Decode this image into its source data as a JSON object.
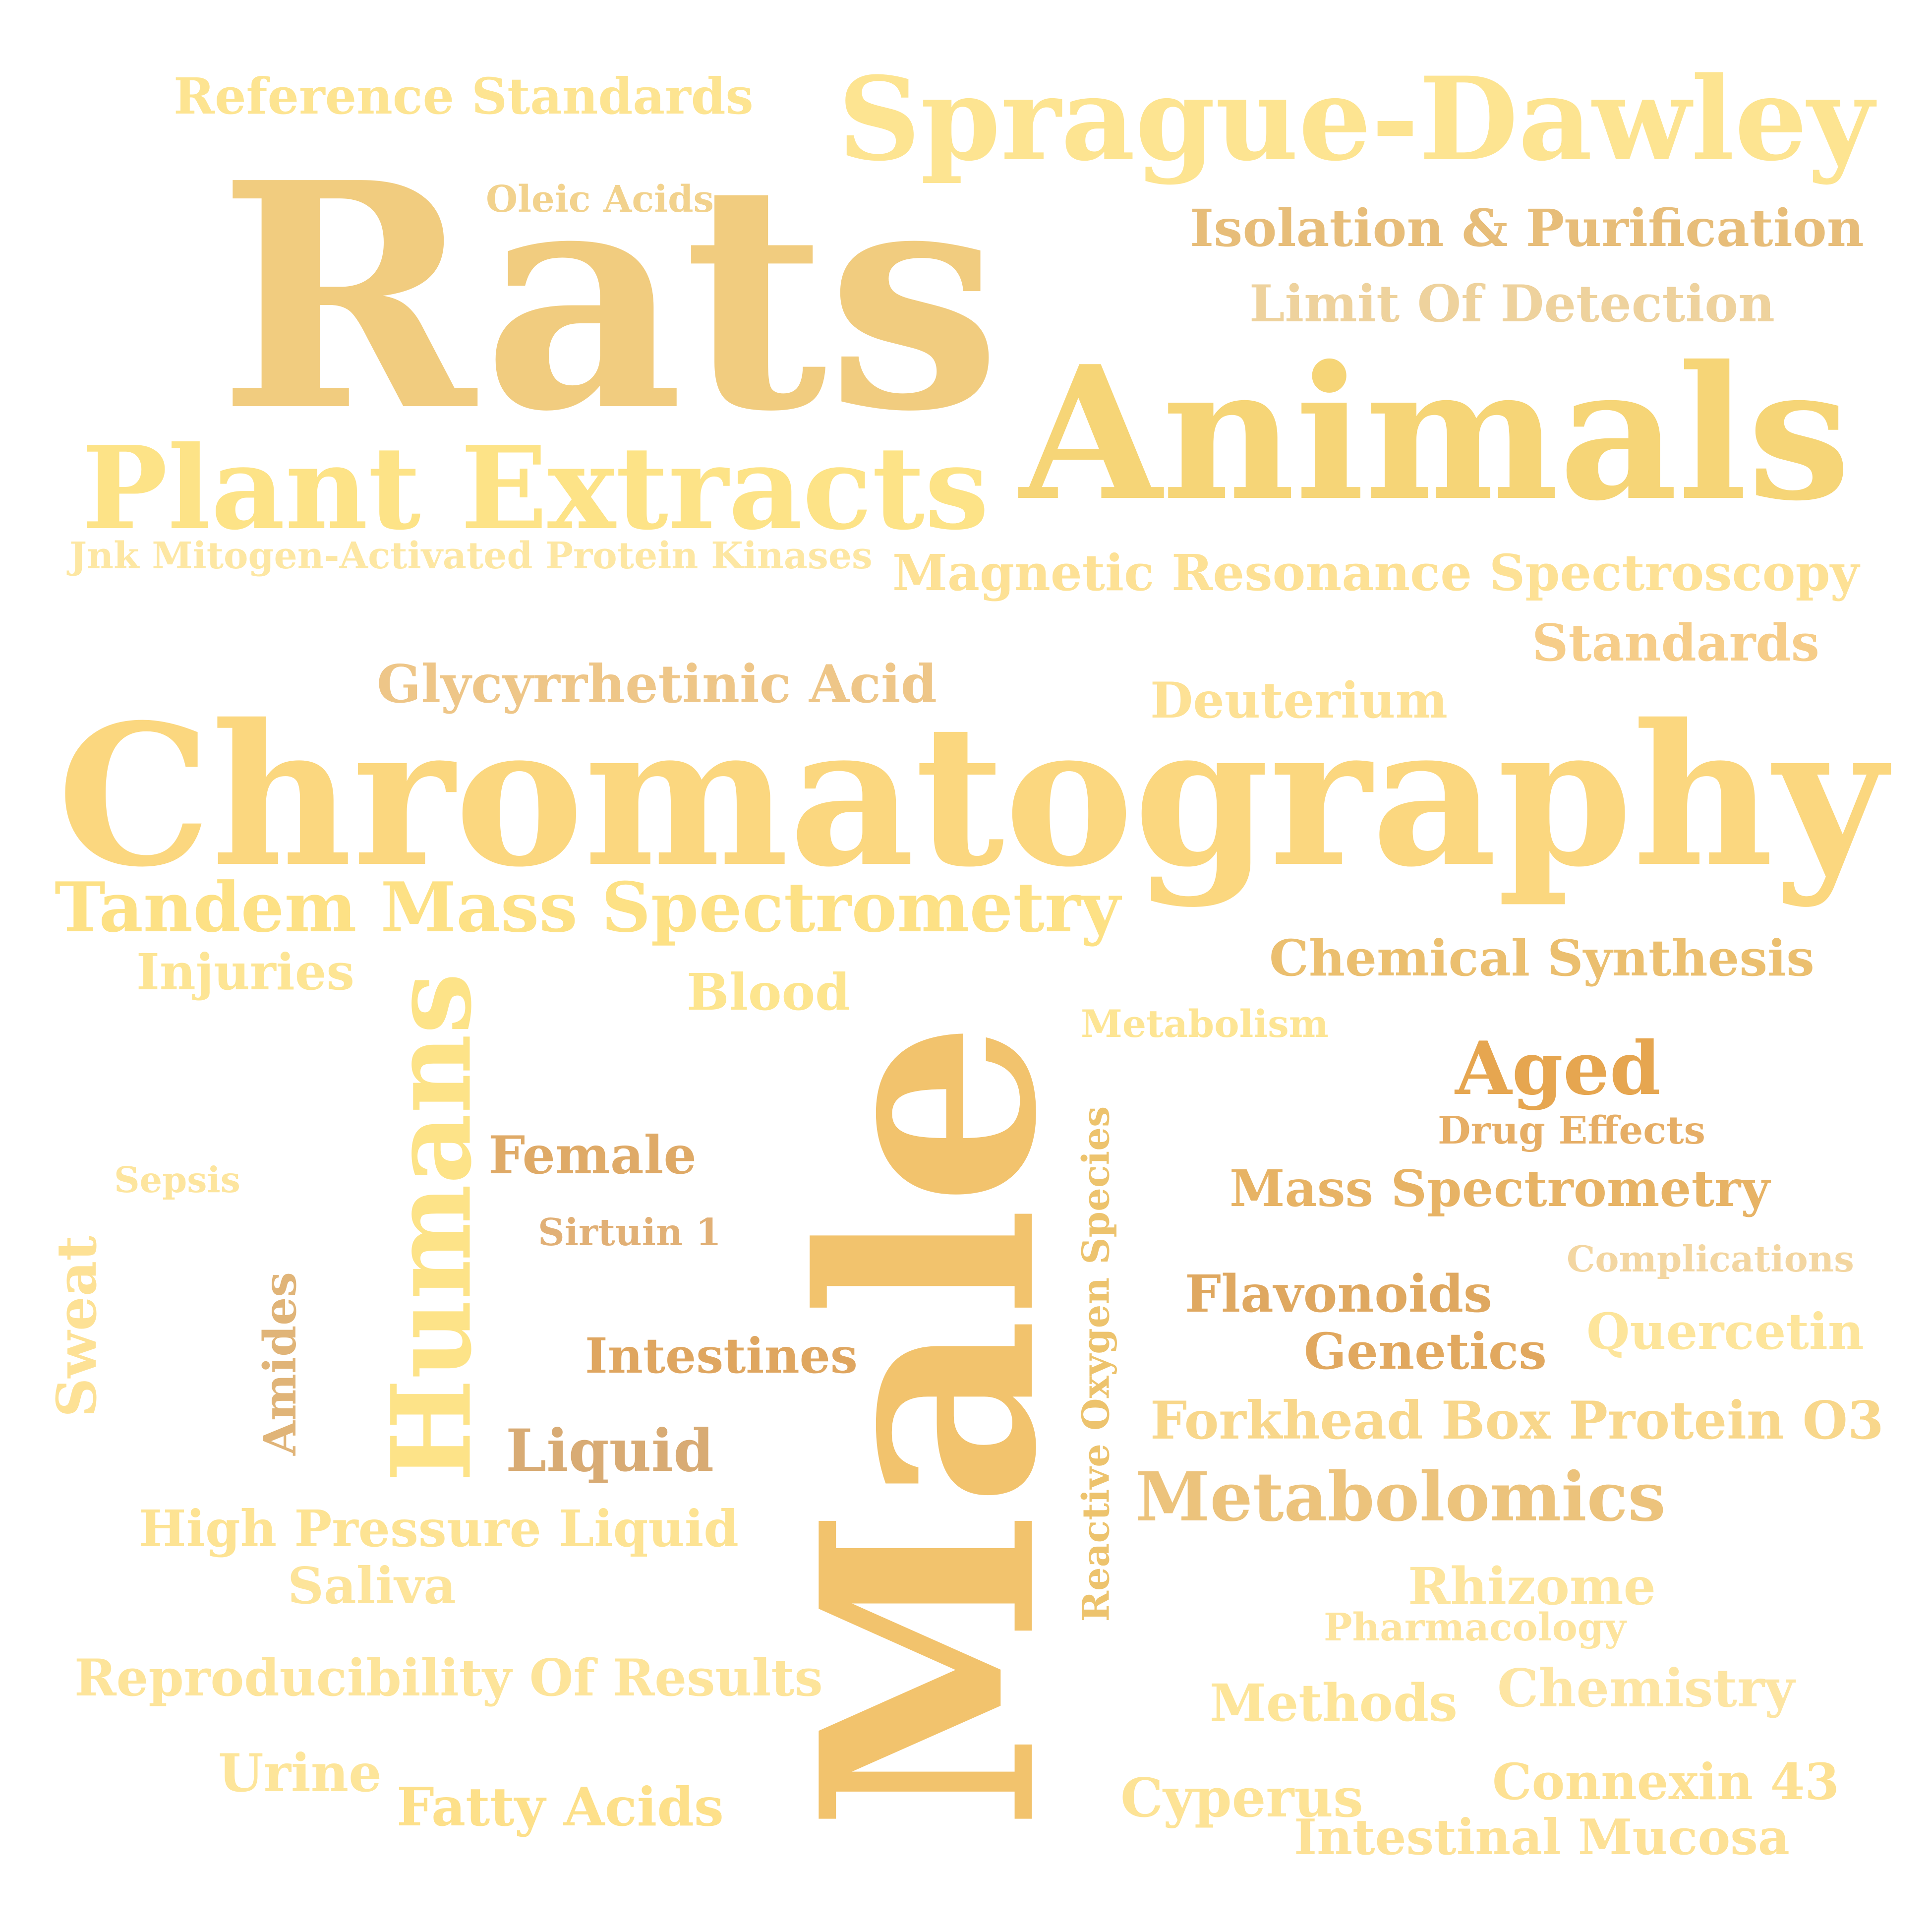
{
  "words": [
    {
      "text": "Reference Standards",
      "color": "#fde491"
    },
    {
      "text": "Sprague-Dawley",
      "color": "#fde491"
    },
    {
      "text": "Oleic Acids",
      "color": "#f2d28d"
    },
    {
      "text": "Rats",
      "color": "#f1cc7f"
    },
    {
      "text": "Isolation & Purification",
      "color": "#e7bd79"
    },
    {
      "text": "Limit Of Detection",
      "color": "#eed29d"
    },
    {
      "text": "Animals",
      "color": "#f6d577"
    },
    {
      "text": "Plant Extracts",
      "color": "#fde387"
    },
    {
      "text": "Jnk Mitogen-Activated Protein Kinases",
      "color": "#fde7a3"
    },
    {
      "text": "Magnetic Resonance Spectroscopy",
      "color": "#fde195"
    },
    {
      "text": "Standards",
      "color": "#f6cd89"
    },
    {
      "text": "Glycyrrhetinic Acid",
      "color": "#eec688"
    },
    {
      "text": "Deuterium",
      "color": "#fde195"
    },
    {
      "text": "Chromatography",
      "color": "#fbd77f"
    },
    {
      "text": "Tandem Mass Spectrometry",
      "color": "#fde185"
    },
    {
      "text": "Injuries",
      "color": "#fde594"
    },
    {
      "text": "Blood",
      "color": "#fde58e"
    },
    {
      "text": "Chemical Synthesis",
      "color": "#ebbf6f"
    },
    {
      "text": "Metabolism",
      "color": "#fde594"
    },
    {
      "text": "Humans",
      "color": "#fde388"
    },
    {
      "text": "Male",
      "color": "#f2c36d"
    },
    {
      "text": "Aged",
      "color": "#e6a650"
    },
    {
      "text": "Drug Effects",
      "color": "#e6ae66"
    },
    {
      "text": "Female",
      "color": "#dfaa67"
    },
    {
      "text": "Reactive Oxygen Species",
      "color": "#edc36d"
    },
    {
      "text": "Sepsis",
      "color": "#fde59e"
    },
    {
      "text": "Mass Spectrometry",
      "color": "#e7b365"
    },
    {
      "text": "Sirtuin 1",
      "color": "#e1b076"
    },
    {
      "text": "Complications",
      "color": "#f3d6a1"
    },
    {
      "text": "Sweat",
      "color": "#fde195"
    },
    {
      "text": "Amides",
      "color": "#e0b478"
    },
    {
      "text": "Flavonoids",
      "color": "#dfa860"
    },
    {
      "text": "Quercetin",
      "color": "#fde59b"
    },
    {
      "text": "Genetics",
      "color": "#e1a85f"
    },
    {
      "text": "Intestines",
      "color": "#dfa660"
    },
    {
      "text": "Forkhead Box Protein O3",
      "color": "#f8d78b"
    },
    {
      "text": "Liquid",
      "color": "#d8ab74"
    },
    {
      "text": "Metabolomics",
      "color": "#ecc37c"
    },
    {
      "text": "High Pressure Liquid",
      "color": "#fde393"
    },
    {
      "text": "Saliva",
      "color": "#fde49a"
    },
    {
      "text": "Rhizome",
      "color": "#fde59e"
    },
    {
      "text": "Pharmacology",
      "color": "#fde49e"
    },
    {
      "text": "Reproducibility Of Results",
      "color": "#fde49a"
    },
    {
      "text": "Methods",
      "color": "#fde599"
    },
    {
      "text": "Chemistry",
      "color": "#fde5a3"
    },
    {
      "text": "Urine",
      "color": "#fde59a"
    },
    {
      "text": "Fatty Acids",
      "color": "#fde08a"
    },
    {
      "text": "Cyperus",
      "color": "#fde396"
    },
    {
      "text": "Connexin 43",
      "color": "#fde193"
    },
    {
      "text": "Intestinal Mucosa",
      "color": "#fde196"
    }
  ]
}
